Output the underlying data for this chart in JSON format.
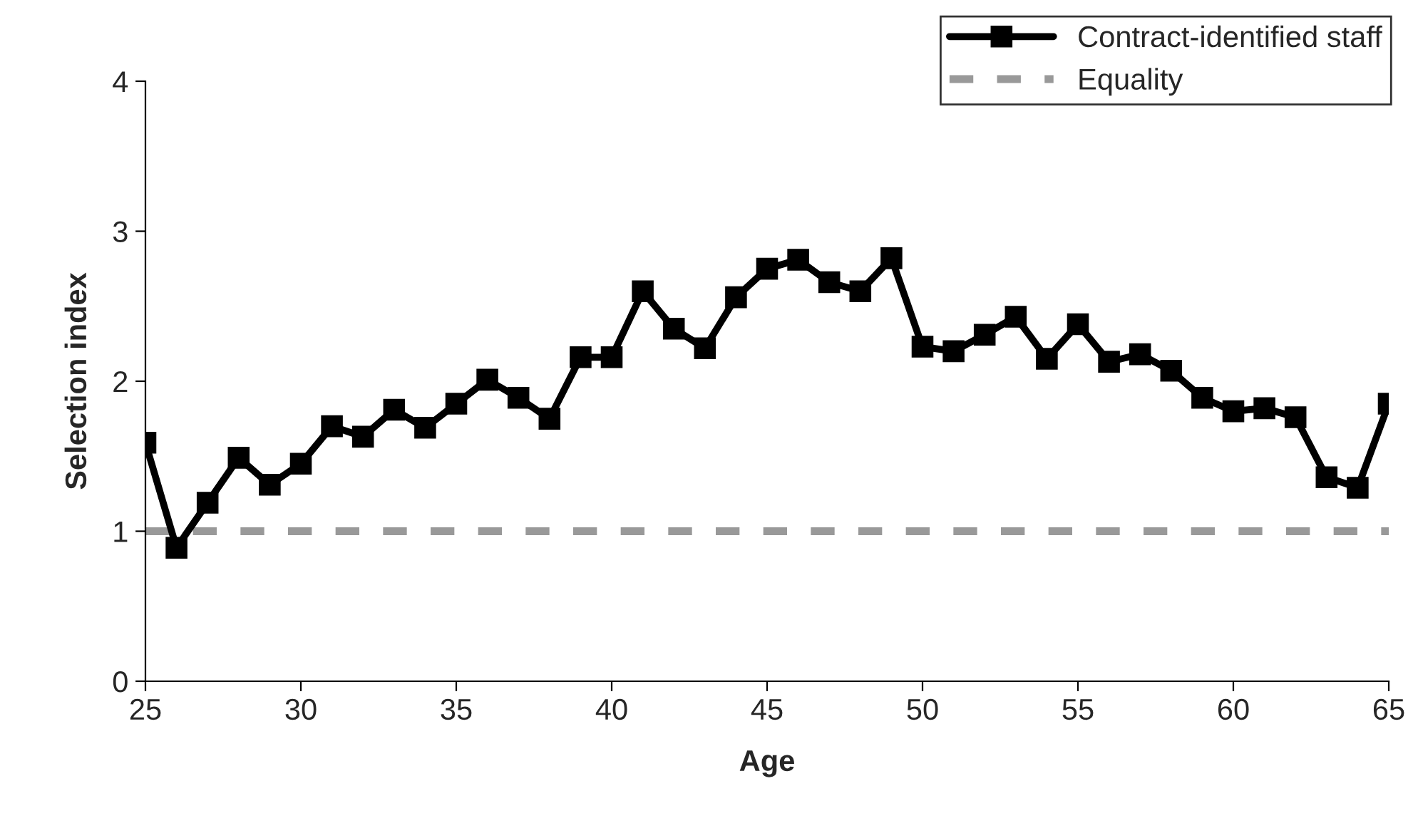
{
  "chart_data": {
    "type": "line",
    "xlabel": "Age",
    "ylabel": "Selection index",
    "x": [
      25,
      26,
      27,
      28,
      29,
      30,
      31,
      32,
      33,
      34,
      35,
      36,
      37,
      38,
      39,
      40,
      41,
      42,
      43,
      44,
      45,
      46,
      47,
      48,
      49,
      50,
      51,
      52,
      53,
      54,
      55,
      56,
      57,
      58,
      59,
      60,
      61,
      62,
      63,
      64,
      65
    ],
    "series": [
      {
        "name": "Contract-identified staff",
        "color": "#000000",
        "marker": "square",
        "line_style": "solid",
        "values": [
          1.59,
          0.89,
          1.19,
          1.49,
          1.31,
          1.45,
          1.7,
          1.63,
          1.81,
          1.69,
          1.85,
          2.01,
          1.89,
          1.75,
          2.16,
          2.16,
          2.6,
          2.35,
          2.22,
          2.56,
          2.75,
          2.81,
          2.66,
          2.6,
          2.82,
          2.23,
          2.2,
          2.31,
          2.43,
          2.15,
          2.38,
          2.13,
          2.18,
          2.07,
          1.89,
          1.8,
          1.82,
          1.76,
          1.36,
          1.29,
          1.85
        ]
      },
      {
        "name": "Equality",
        "color": "#999999",
        "marker": "none",
        "line_style": "dashed",
        "x": [
          25,
          65
        ],
        "values": [
          1,
          1
        ]
      }
    ],
    "xlim": [
      25,
      65
    ],
    "xticks": [
      25,
      30,
      35,
      40,
      45,
      50,
      55,
      60,
      65
    ],
    "ylim": [
      0,
      4
    ],
    "yticks": [
      0,
      1,
      2,
      3,
      4
    ],
    "grid": false,
    "legend": "top right"
  }
}
